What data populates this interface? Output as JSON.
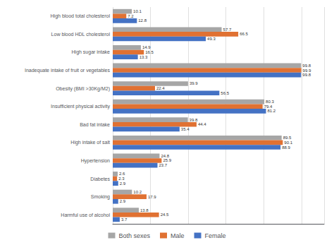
{
  "chart_data": {
    "type": "bar",
    "orientation": "horizontal",
    "categories": [
      "High blood total cholesterol",
      "Low blood HDL cholesterol",
      "High sugar intake",
      "Inadequate intake of fruit or vegetables",
      "Obesity (BMI >30Kg/M2)",
      "Insufficient physical activity",
      "Bad fat intake",
      "High intake of salt",
      "Hypertension",
      "Diabetes",
      "Smoking",
      "Harmful use of alcohol"
    ],
    "series": [
      {
        "name": "Both sexes",
        "color": "#a6a6a6",
        "values": [
          10.1,
          57.7,
          14.9,
          99.8,
          39.9,
          80.3,
          39.8,
          89.5,
          24.8,
          2.6,
          10.2,
          13.8
        ]
      },
      {
        "name": "Male",
        "color": "#e07132",
        "values": [
          7.2,
          66.5,
          16.5,
          99.9,
          22.4,
          79.4,
          44.4,
          90.1,
          25.9,
          2.3,
          17.9,
          24.5
        ]
      },
      {
        "name": "Female",
        "color": "#4472c4",
        "values": [
          12.8,
          49.3,
          13.3,
          99.8,
          56.5,
          81.2,
          35.4,
          88.9,
          23.7,
          2.9,
          2.9,
          3.7
        ]
      }
    ],
    "xlim": [
      0,
      112
    ],
    "xticks": [
      0,
      20,
      40,
      60,
      80,
      100
    ],
    "grid": true,
    "legend": "bottom",
    "data_labels": true,
    "tick_labels": "y"
  }
}
